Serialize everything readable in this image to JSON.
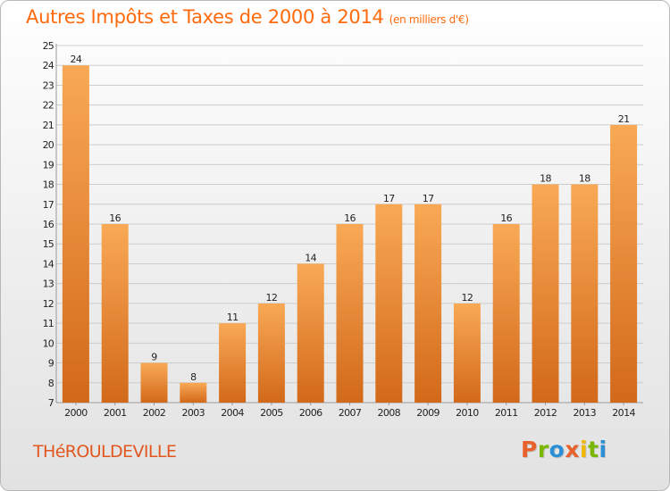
{
  "header": {
    "title": "Autres Impôts et Taxes de 2000 à 2014",
    "unit": "(en milliers d'€)"
  },
  "footer": {
    "commune": "THéROULDEVILLE",
    "logo_letters": [
      "P",
      "r",
      "o",
      "x",
      "i",
      "t",
      "i"
    ],
    "logo_colors": [
      "#e8612c",
      "#7ab800",
      "#2b8fd6",
      "#e8612c",
      "#f2b705",
      "#7ab800",
      "#2b8fd6"
    ]
  },
  "colors": {
    "bar_light": "#f9a955",
    "bar_dark": "#d2691a",
    "grid": "#cccccc",
    "axis_text": "#222222",
    "title": "#ff6a0c"
  },
  "chart_data": {
    "type": "bar",
    "categories": [
      "2000",
      "2001",
      "2002",
      "2003",
      "2004",
      "2005",
      "2006",
      "2007",
      "2008",
      "2009",
      "2010",
      "2011",
      "2012",
      "2013",
      "2014"
    ],
    "values": [
      24,
      16,
      9,
      8,
      11,
      12,
      14,
      16,
      17,
      17,
      12,
      16,
      18,
      18,
      21
    ],
    "title": "Autres Impôts et Taxes de 2000 à 2014",
    "xlabel": "",
    "ylabel": "",
    "ylim": [
      7,
      25
    ],
    "yticks": [
      7,
      8,
      9,
      10,
      11,
      12,
      13,
      14,
      15,
      16,
      17,
      18,
      19,
      20,
      21,
      22,
      23,
      24,
      25
    ],
    "grid": true,
    "data_labels": true
  }
}
